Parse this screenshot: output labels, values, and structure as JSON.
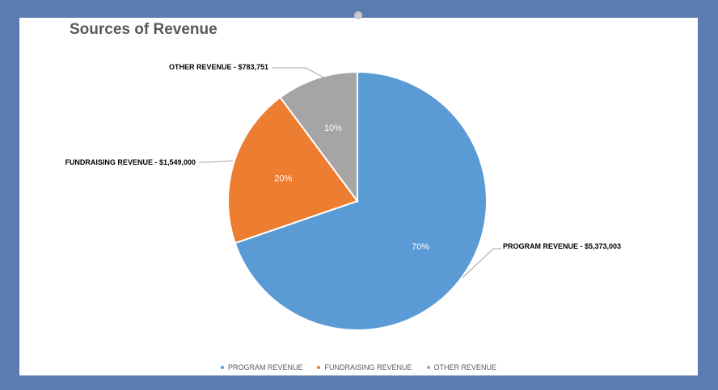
{
  "chart_data": {
    "type": "pie",
    "title": "Sources of Revenue",
    "slices": [
      {
        "name": "PROGRAM REVENUE",
        "value": 5373003,
        "percent_label": "70%",
        "label": "PROGRAM REVENUE - $5,373,003",
        "color": "#5b9bd5"
      },
      {
        "name": "FUNDRAISING REVENUE",
        "value": 1549000,
        "percent_label": "20%",
        "label": "FUNDRAISING REVENUE - $1,549,000",
        "color": "#ed7d31"
      },
      {
        "name": "OTHER REVENUE",
        "value": 783751,
        "percent_label": "10%",
        "label": "OTHER REVENUE - $783,751",
        "color": "#a5a5a5"
      }
    ],
    "legend": {
      "position": "bottom",
      "entries": [
        "PROGRAM REVENUE",
        "FUNDRAISING REVENUE",
        "OTHER REVENUE"
      ]
    }
  }
}
